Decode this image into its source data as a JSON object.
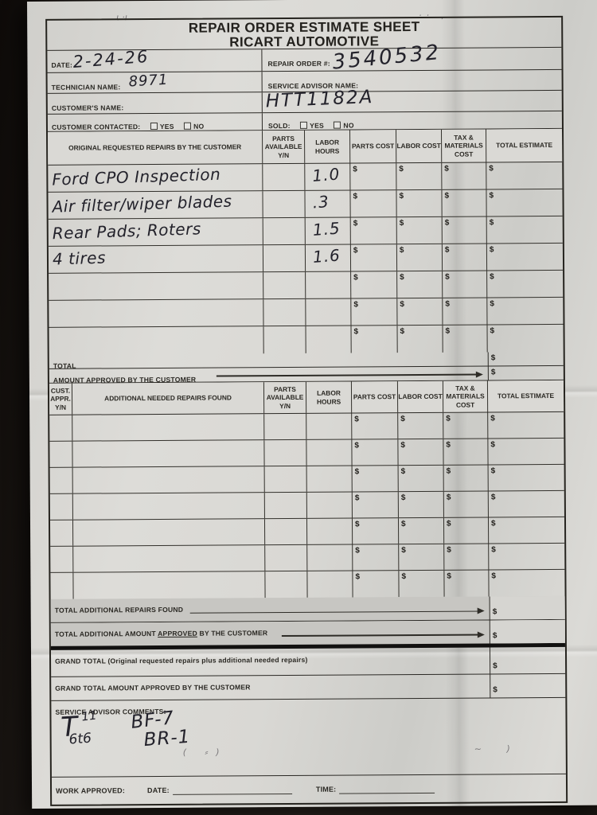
{
  "currency": "$",
  "title": {
    "line1": "REPAIR ORDER ESTIMATE SHEET",
    "line2": "RICART AUTOMOTIVE"
  },
  "header": {
    "date_label": "DATE:",
    "date_value": "2-24-26",
    "repair_order_label": "REPAIR ORDER #:",
    "repair_order_value": "3540532",
    "technician_label": "TECHNICIAN NAME:",
    "technician_value": "8971",
    "service_advisor_label": "SERVICE ADVISOR NAME:",
    "service_advisor_value": "",
    "customer_name_label": "CUSTOMER'S NAME:",
    "customer_name_value": "",
    "vehicle_stock_value": "HTT1182A",
    "customer_contacted_label": "CUSTOMER CONTACTED:",
    "sold_label": "SOLD:",
    "yes": "YES",
    "no": "NO"
  },
  "original_table": {
    "headers": {
      "repairs": "ORIGINAL REQUESTED REPAIRS BY THE CUSTOMER",
      "parts_available": "PARTS\nAVAILABLE\nY/N",
      "labor_hours": "LABOR\nHOURS",
      "parts_cost": "PARTS COST",
      "labor_cost": "LABOR COST",
      "tax_materials": "TAX &\nMATERIALS\nCOST",
      "total_estimate": "TOTAL ESTIMATE"
    },
    "rows": [
      {
        "repair": "Ford CPO Inspection",
        "hours": "1.0"
      },
      {
        "repair": "Air filter/wiper blades",
        "hours": ".3"
      },
      {
        "repair": "Rear Pads; Roters",
        "hours": "1.5"
      },
      {
        "repair": "4 tires",
        "hours": "1.6"
      },
      {
        "repair": "",
        "hours": ""
      },
      {
        "repair": "",
        "hours": ""
      },
      {
        "repair": "",
        "hours": ""
      }
    ],
    "total_label": "TOTAL",
    "approved_label": "AMOUNT APPROVED BY THE CUSTOMER"
  },
  "additional_table": {
    "headers": {
      "cust_appr": "CUST.\nAPPR.\nY/N",
      "repairs": "ADDITIONAL NEEDED REPAIRS FOUND",
      "parts_available": "PARTS\nAVAILABLE\nY/N",
      "labor_hours": "LABOR\nHOURS",
      "parts_cost": "PARTS COST",
      "labor_cost": "LABOR COST",
      "tax_materials": "TAX &\nMATERIALS\nCOST",
      "total_estimate": "TOTAL ESTIMATE"
    },
    "row_count": 7,
    "total_label": "TOTAL ADDITIONAL REPAIRS FOUND",
    "approved_label_pre": "TOTAL ADDITIONAL AMOUNT ",
    "approved_label_underline": "APPROVED",
    "approved_label_post": " BY THE CUSTOMER"
  },
  "footer": {
    "grand_total_label": "GRAND TOTAL (Original requested repairs plus additional needed repairs)",
    "grand_total_approved_label": "GRAND TOTAL AMOUNT APPROVED BY THE CUSTOMER",
    "comments_label": "SERVICE ADVISOR COMMENTS:",
    "comments": {
      "t": "T",
      "sup": "11",
      "sub": "6t6",
      "bf": "BF-7",
      "br": "BR-1"
    },
    "work_approved_label": "WORK APPROVED:",
    "date_label": "DATE:",
    "time_label": "TIME:"
  },
  "pen_marks": {
    "title_left": "ι  ·ı",
    "title_right": "··  ,",
    "bottom_left": "(  ⸗)",
    "bottom_right": "∼  )"
  }
}
